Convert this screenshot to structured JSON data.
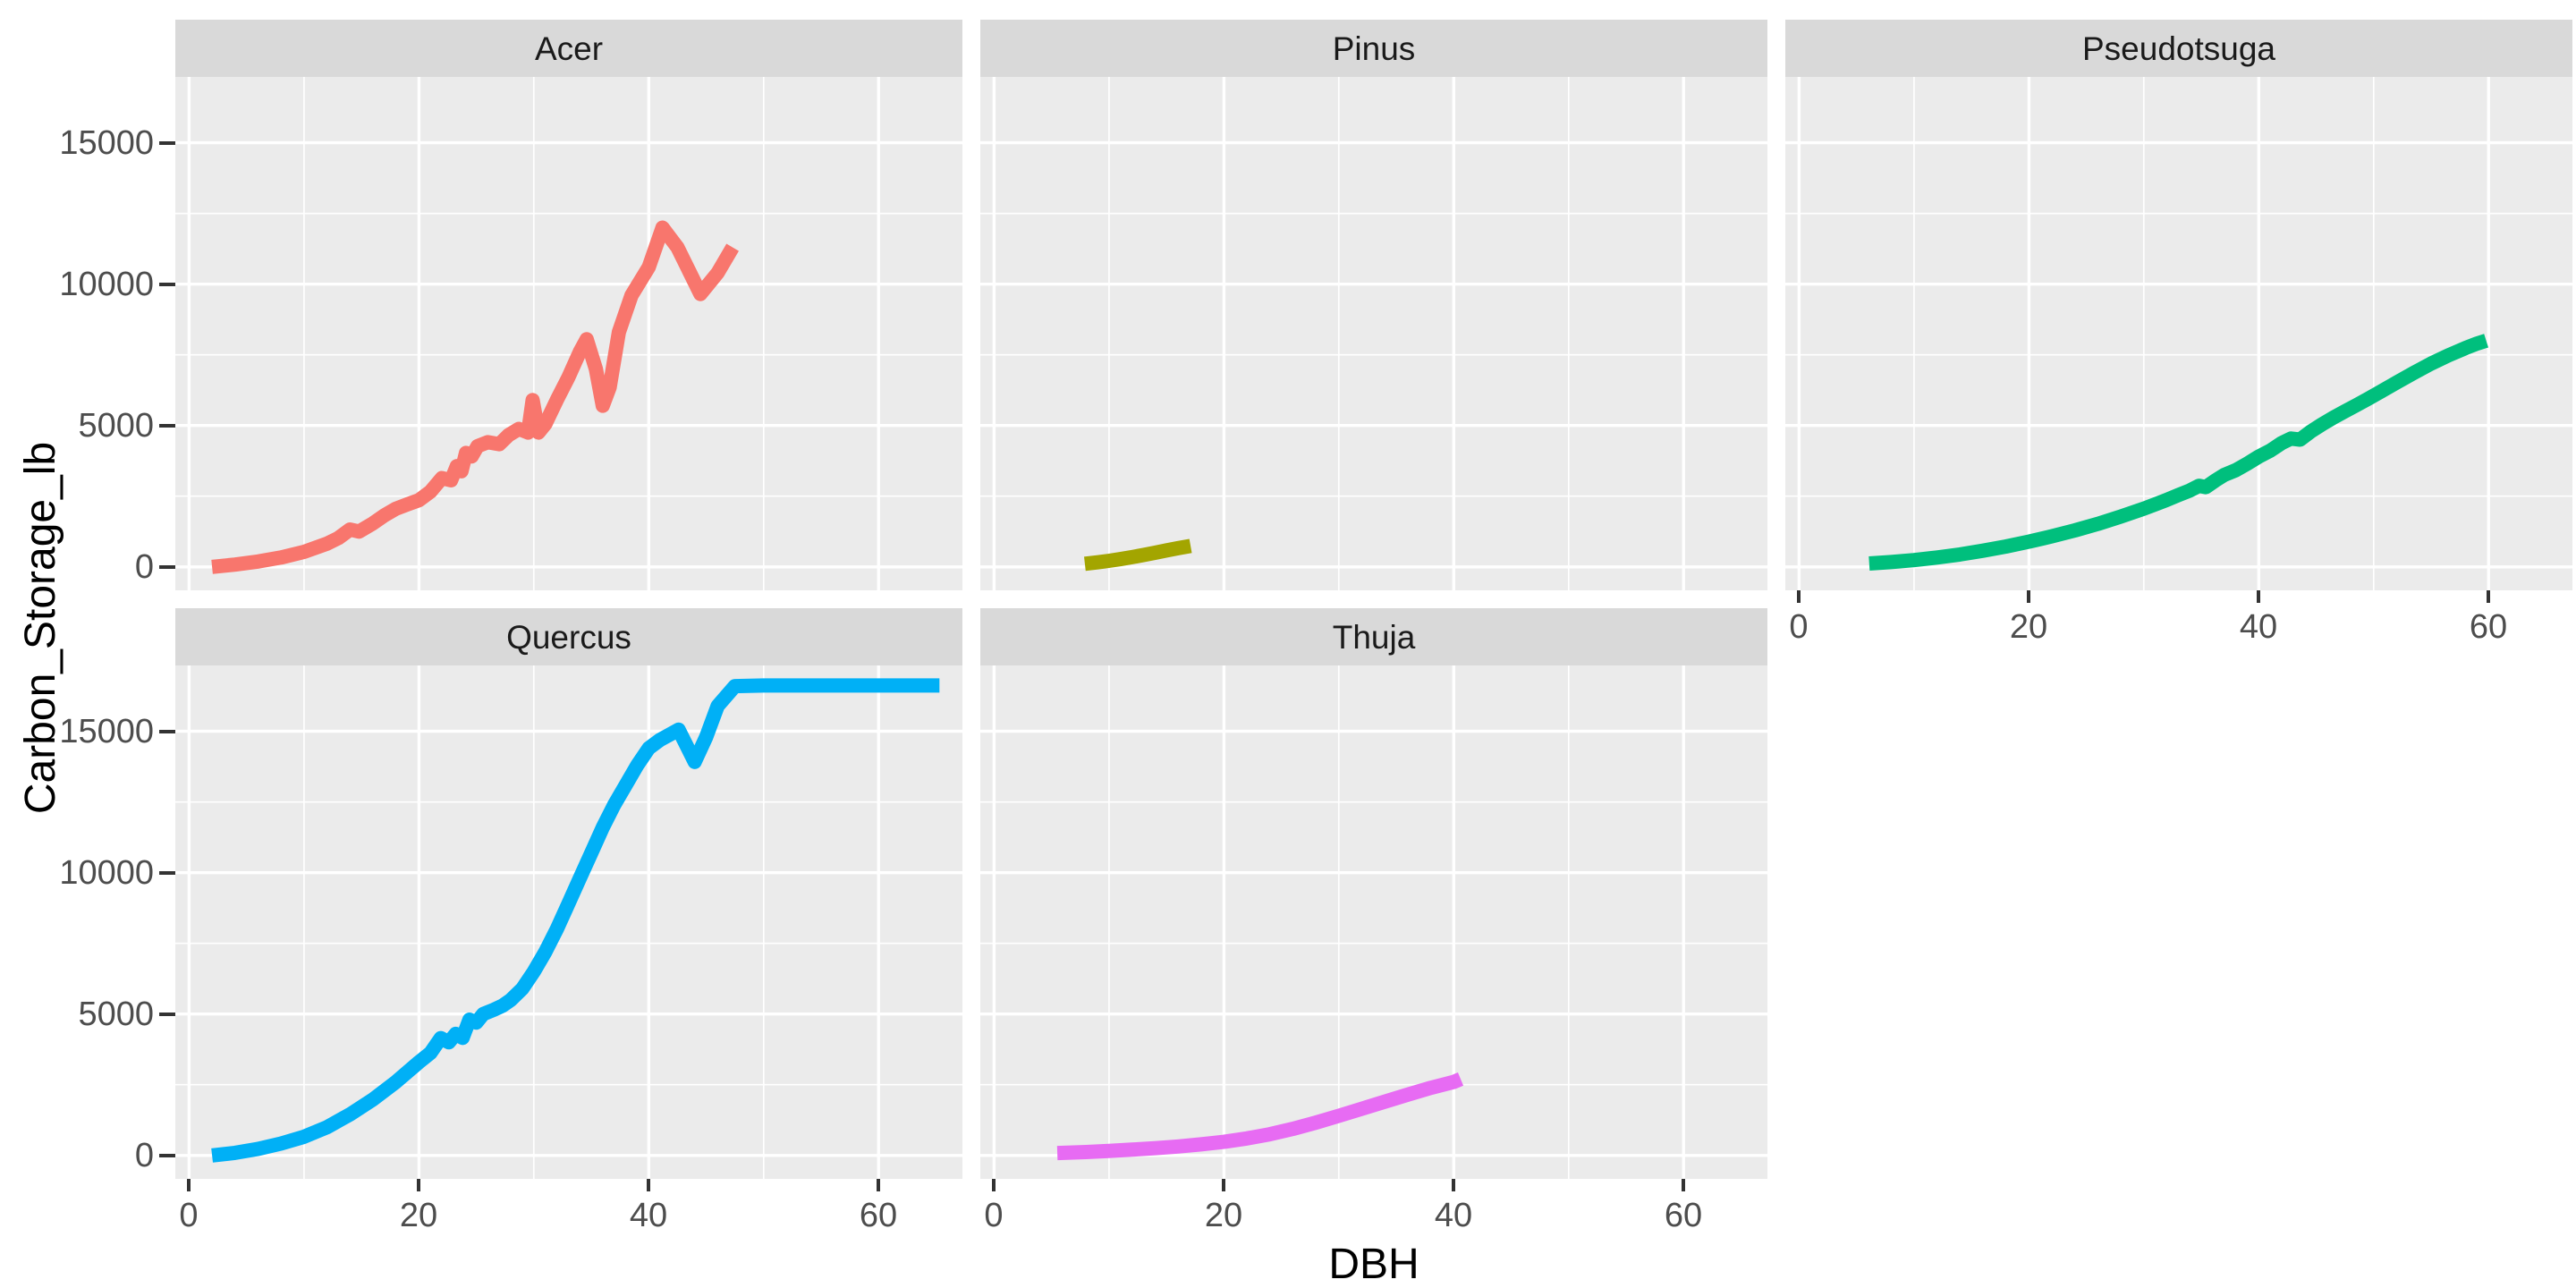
{
  "figure": {
    "y_axis_title": "Carbon_Storage_lb",
    "x_axis_title": "DBH",
    "y_ticks": [
      0,
      5000,
      10000,
      15000
    ],
    "x_ticks": [
      0,
      20,
      40,
      60
    ],
    "colors": {
      "panel_bg": "#EBEBEB",
      "strip_bg": "#D9D9D9",
      "grid": "#FFFFFF",
      "tick_mark": "#333333",
      "tick_text": "#4D4D4D",
      "strip_text": "#1A1A1A",
      "title_text": "#000000"
    }
  },
  "chart_data": {
    "type": "line",
    "title": "",
    "xlabel": "DBH",
    "ylabel": "Carbon_Storage_lb",
    "xlim": [
      -1.2,
      67.3
    ],
    "ylim": [
      -830,
      17330
    ],
    "x_ticks": [
      0,
      20,
      40,
      60
    ],
    "y_ticks": [
      0,
      5000,
      10000,
      15000
    ],
    "grid": "white major+minor gridlines on grey panel (ggplot2 style)",
    "legend": "none (facet strips label groups)",
    "facet_layout": "3 columns x 2 rows; bottom-right cell empty",
    "facets": [
      {
        "name": "Acer",
        "color": "#F8766D",
        "points": [
          [
            2,
            0
          ],
          [
            4,
            80
          ],
          [
            6,
            190
          ],
          [
            8,
            330
          ],
          [
            10,
            530
          ],
          [
            12,
            820
          ],
          [
            13,
            1020
          ],
          [
            14,
            1320
          ],
          [
            14.8,
            1250
          ],
          [
            16,
            1540
          ],
          [
            17,
            1820
          ],
          [
            18,
            2060
          ],
          [
            19,
            2210
          ],
          [
            20,
            2360
          ],
          [
            21,
            2660
          ],
          [
            22,
            3140
          ],
          [
            22.8,
            3060
          ],
          [
            23.3,
            3560
          ],
          [
            23.7,
            3380
          ],
          [
            24.1,
            4030
          ],
          [
            24.6,
            3910
          ],
          [
            25.1,
            4270
          ],
          [
            26,
            4410
          ],
          [
            27,
            4340
          ],
          [
            27.8,
            4660
          ],
          [
            28.7,
            4880
          ],
          [
            29.5,
            4750
          ],
          [
            29.9,
            5900
          ],
          [
            30.4,
            4750
          ],
          [
            31,
            5050
          ],
          [
            32,
            5900
          ],
          [
            33,
            6700
          ],
          [
            34,
            7600
          ],
          [
            34.6,
            8050
          ],
          [
            35.4,
            7000
          ],
          [
            36,
            5700
          ],
          [
            36.6,
            6350
          ],
          [
            37.4,
            8300
          ],
          [
            38.5,
            9600
          ],
          [
            40,
            10600
          ],
          [
            41.2,
            12000
          ],
          [
            42.5,
            11300
          ],
          [
            44.5,
            9650
          ],
          [
            46,
            10400
          ],
          [
            47.3,
            11300
          ]
        ]
      },
      {
        "name": "Pinus",
        "color": "#A3A500",
        "points": [
          [
            7.9,
            110
          ],
          [
            9,
            160
          ],
          [
            10,
            215
          ],
          [
            11,
            275
          ],
          [
            12,
            345
          ],
          [
            13,
            420
          ],
          [
            14,
            500
          ],
          [
            15,
            580
          ],
          [
            16,
            660
          ],
          [
            17.1,
            740
          ]
        ]
      },
      {
        "name": "Pseudotsuga",
        "color": "#00BF7D",
        "points": [
          [
            6.1,
            120
          ],
          [
            8,
            170
          ],
          [
            10,
            240
          ],
          [
            12,
            330
          ],
          [
            14,
            440
          ],
          [
            16,
            570
          ],
          [
            18,
            720
          ],
          [
            20,
            890
          ],
          [
            22,
            1080
          ],
          [
            24,
            1290
          ],
          [
            26,
            1520
          ],
          [
            28,
            1780
          ],
          [
            30,
            2060
          ],
          [
            32,
            2370
          ],
          [
            33,
            2540
          ],
          [
            34,
            2700
          ],
          [
            34.8,
            2870
          ],
          [
            35.4,
            2820
          ],
          [
            36.2,
            3050
          ],
          [
            37,
            3250
          ],
          [
            38,
            3420
          ],
          [
            39,
            3650
          ],
          [
            40,
            3900
          ],
          [
            41,
            4110
          ],
          [
            42,
            4380
          ],
          [
            42.8,
            4540
          ],
          [
            43.6,
            4500
          ],
          [
            44.5,
            4780
          ],
          [
            45.5,
            5040
          ],
          [
            46.5,
            5280
          ],
          [
            47.5,
            5500
          ],
          [
            48.5,
            5720
          ],
          [
            49.5,
            5940
          ],
          [
            50.5,
            6170
          ],
          [
            52,
            6520
          ],
          [
            53.5,
            6860
          ],
          [
            55,
            7190
          ],
          [
            56.5,
            7480
          ],
          [
            58,
            7740
          ],
          [
            59,
            7900
          ],
          [
            59.8,
            8000
          ]
        ]
      },
      {
        "name": "Quercus",
        "color": "#00B0F6",
        "points": [
          [
            2,
            0
          ],
          [
            4,
            90
          ],
          [
            6,
            230
          ],
          [
            8,
            420
          ],
          [
            10,
            660
          ],
          [
            12,
            1000
          ],
          [
            14,
            1450
          ],
          [
            16,
            1980
          ],
          [
            18,
            2600
          ],
          [
            20,
            3300
          ],
          [
            21,
            3620
          ],
          [
            21.9,
            4150
          ],
          [
            22.6,
            4000
          ],
          [
            23.2,
            4300
          ],
          [
            23.8,
            4160
          ],
          [
            24.4,
            4800
          ],
          [
            25,
            4700
          ],
          [
            25.6,
            5000
          ],
          [
            26.5,
            5150
          ],
          [
            27.3,
            5300
          ],
          [
            28,
            5500
          ],
          [
            29,
            5900
          ],
          [
            30,
            6500
          ],
          [
            31,
            7200
          ],
          [
            32,
            8000
          ],
          [
            33,
            8900
          ],
          [
            34,
            9800
          ],
          [
            35,
            10700
          ],
          [
            36,
            11600
          ],
          [
            37,
            12400
          ],
          [
            38,
            13100
          ],
          [
            39,
            13800
          ],
          [
            40,
            14400
          ],
          [
            41,
            14700
          ],
          [
            42.6,
            15060
          ],
          [
            44,
            13920
          ],
          [
            45,
            14800
          ],
          [
            46,
            15900
          ],
          [
            47.5,
            16600
          ],
          [
            50,
            16620
          ],
          [
            55,
            16620
          ],
          [
            60,
            16620
          ],
          [
            65.3,
            16620
          ]
        ]
      },
      {
        "name": "Thuja",
        "color": "#E76BF3",
        "points": [
          [
            5.5,
            85
          ],
          [
            8,
            120
          ],
          [
            10,
            160
          ],
          [
            12,
            205
          ],
          [
            14,
            255
          ],
          [
            16,
            315
          ],
          [
            18,
            390
          ],
          [
            20,
            480
          ],
          [
            22,
            600
          ],
          [
            24,
            750
          ],
          [
            26,
            940
          ],
          [
            28,
            1160
          ],
          [
            30,
            1400
          ],
          [
            32,
            1650
          ],
          [
            34,
            1900
          ],
          [
            36,
            2150
          ],
          [
            38,
            2390
          ],
          [
            40,
            2600
          ],
          [
            40.6,
            2700
          ]
        ]
      }
    ]
  }
}
